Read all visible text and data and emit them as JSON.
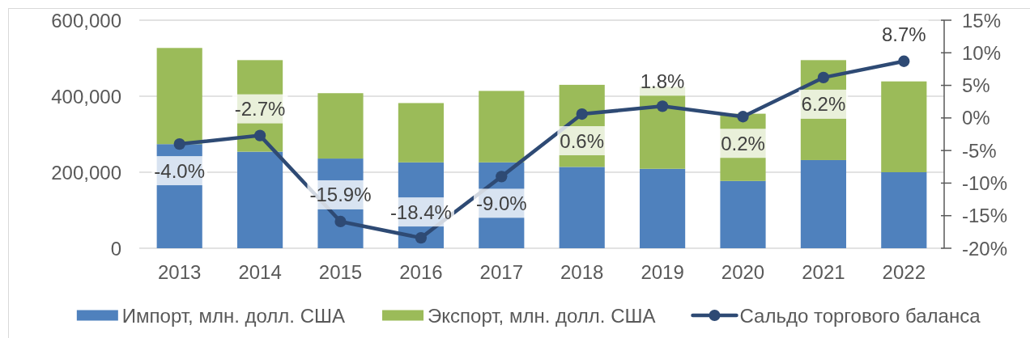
{
  "chart_data": {
    "type": "bar",
    "stacked": true,
    "categories": [
      "2013",
      "2014",
      "2015",
      "2016",
      "2017",
      "2018",
      "2019",
      "2020",
      "2021",
      "2022"
    ],
    "series": [
      {
        "name": "Импорт, млн. долл. США",
        "color": "#4f81bd",
        "values": [
          274000,
          254000,
          236000,
          226000,
          226000,
          214000,
          209000,
          177000,
          232000,
          200000
        ]
      },
      {
        "name": "Экспорт, млн. долл. США",
        "color": "#9bbb59",
        "values": [
          253000,
          241000,
          172000,
          156000,
          188000,
          216000,
          216000,
          177000,
          263000,
          239000
        ]
      },
      {
        "name": "Сальдо торгового баланса",
        "type": "line",
        "axis": "y2",
        "color": "#2e4a74",
        "values": [
          -4.0,
          -2.7,
          -15.9,
          -18.4,
          -9.0,
          0.6,
          1.8,
          0.2,
          6.2,
          8.7
        ],
        "value_labels": [
          "-4.0%",
          "-2.7%",
          "-15.9%",
          "-18.4%",
          "-9.0%",
          "0.6%",
          "1.8%",
          "0.2%",
          "6.2%",
          "8.7%"
        ]
      }
    ],
    "ylim": [
      0,
      600000
    ],
    "yticks": [
      0,
      {
        "value": 200000,
        "label": "200,000"
      },
      {
        "value": 400000,
        "label": "400,000"
      },
      {
        "value": 600000,
        "label": "600,000"
      }
    ],
    "y2lim": [
      -20,
      15
    ],
    "y2ticks": [
      {
        "value": -20,
        "label": "-20%"
      },
      {
        "value": -15,
        "label": "-15%"
      },
      {
        "value": -10,
        "label": "-10%"
      },
      {
        "value": -5,
        "label": "-5%"
      },
      {
        "value": 0,
        "label": "0%"
      },
      {
        "value": 5,
        "label": "5%"
      },
      {
        "value": 10,
        "label": "10%"
      },
      {
        "value": 15,
        "label": "15%"
      }
    ],
    "grid": "y",
    "legend": "bottom",
    "marker": "circle"
  }
}
